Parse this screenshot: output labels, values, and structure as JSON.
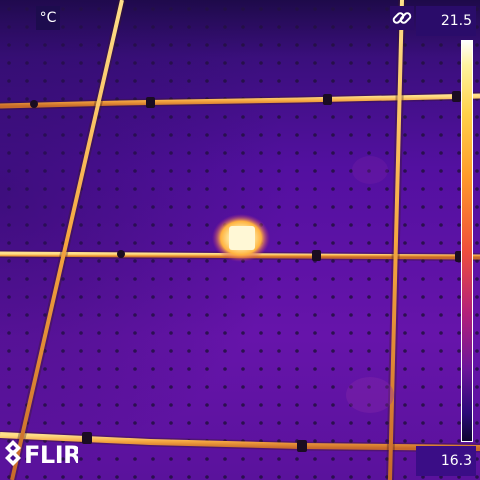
{
  "overlay": {
    "unit": "°C",
    "link_icon": "link-icon",
    "scale_max": "21.5",
    "scale_min": "16.3",
    "logo": "FLIR"
  },
  "colors": {
    "background_purple": "#5a14a8",
    "hot_spot": "#fff6c8",
    "frame_lines": "#f2b24a",
    "palette_top": "#ffffff",
    "palette_bottom": "#0c0430"
  }
}
